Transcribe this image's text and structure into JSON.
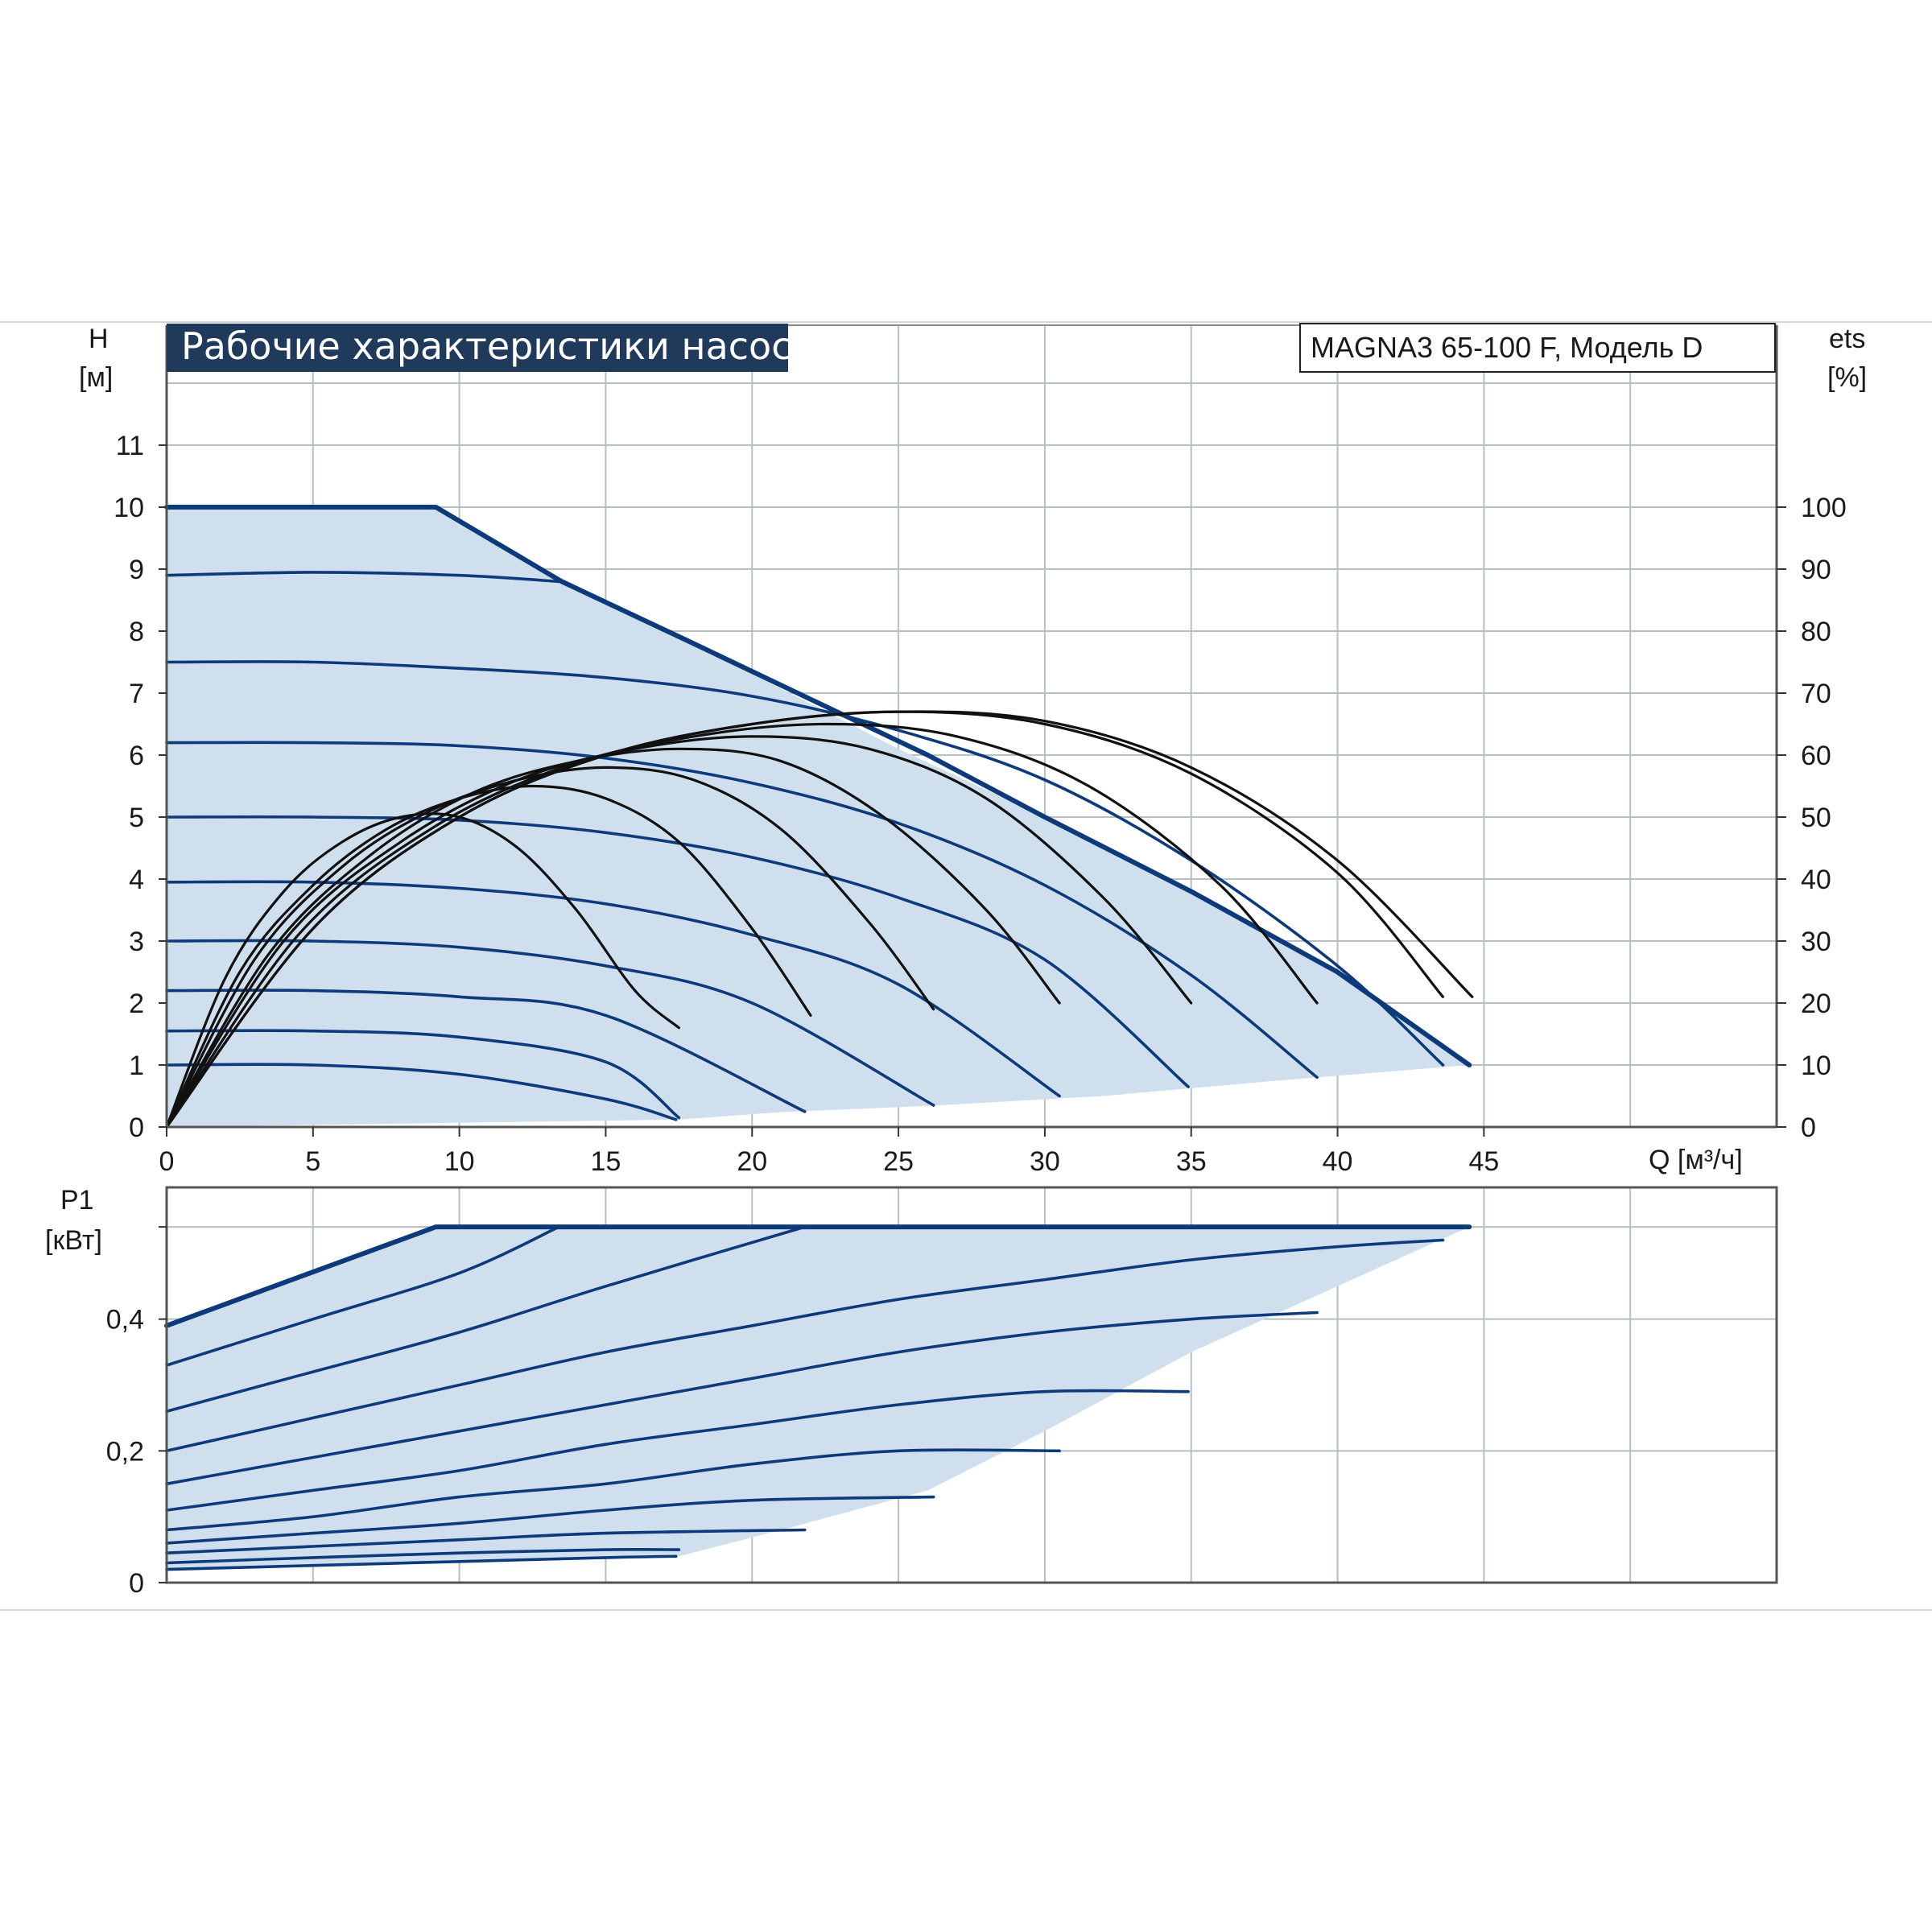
{
  "chart_data": [
    {
      "type": "line",
      "title": "Рабочие характеристики насоса",
      "model": "MAGNA3 65-100 F, Модель D",
      "xlabel": "Q [м³/ч]",
      "ylabel_name": "H",
      "ylabel_unit": "[м]",
      "y2label_name": "ets",
      "y2label_unit": "[%]",
      "xlim": [
        0,
        55
      ],
      "ylim": [
        0,
        12
      ],
      "y2lim": [
        0,
        120
      ],
      "x_ticks": [
        "0",
        "5",
        "10",
        "15",
        "20",
        "25",
        "30",
        "35",
        "40",
        "45"
      ],
      "y_ticks": [
        "0",
        "1",
        "2",
        "3",
        "4",
        "5",
        "6",
        "7",
        "8",
        "9",
        "10",
        "11"
      ],
      "y2_ticks": [
        "0",
        "10",
        "20",
        "30",
        "40",
        "50",
        "60",
        "70",
        "80",
        "90",
        "100"
      ],
      "grid": true,
      "colors": {
        "curve": "#0d3a7a",
        "fill": "#d0dfee",
        "efficiency": "#111111",
        "title_bg": "#1f3a5a"
      },
      "operating_area": [
        [
          0,
          10
        ],
        [
          9.2,
          10
        ],
        [
          13.5,
          8.8
        ],
        [
          18,
          7.8
        ],
        [
          25,
          6.1
        ],
        [
          30,
          5.0
        ],
        [
          35,
          3.8
        ],
        [
          40,
          2.5
        ],
        [
          44.5,
          1.0
        ],
        [
          38,
          0.75
        ],
        [
          32,
          0.5
        ],
        [
          26,
          0.34
        ],
        [
          21,
          0.24
        ],
        [
          17.5,
          0.12
        ],
        [
          0,
          0
        ]
      ],
      "series": [
        {
          "role": "max-curve",
          "x": [
            0,
            9.2,
            13.5,
            18,
            22,
            26,
            30,
            35,
            40,
            44.5
          ],
          "y": [
            10,
            10,
            8.8,
            7.8,
            6.9,
            6.0,
            5.0,
            3.8,
            2.5,
            1.0
          ]
        },
        {
          "role": "speed-curve",
          "x": [
            0,
            5,
            10,
            13.4
          ],
          "y": [
            8.9,
            8.95,
            8.9,
            8.8
          ]
        },
        {
          "role": "speed-curve",
          "x": [
            0,
            5,
            10,
            15,
            20,
            25,
            30,
            35,
            40,
            43.6
          ],
          "y": [
            7.5,
            7.5,
            7.4,
            7.25,
            6.95,
            6.4,
            5.6,
            4.3,
            2.6,
            1.0
          ]
        },
        {
          "role": "speed-curve",
          "x": [
            0,
            5,
            10,
            15,
            20,
            25,
            30,
            35,
            39.3
          ],
          "y": [
            6.2,
            6.2,
            6.15,
            5.95,
            5.55,
            4.9,
            3.9,
            2.45,
            0.8
          ]
        },
        {
          "role": "speed-curve",
          "x": [
            0,
            5,
            10,
            15,
            20,
            25,
            30,
            34.9
          ],
          "y": [
            5.0,
            5.0,
            4.95,
            4.75,
            4.35,
            3.7,
            2.7,
            0.65
          ]
        },
        {
          "role": "speed-curve",
          "x": [
            0,
            5,
            10,
            15,
            20,
            25,
            30.5
          ],
          "y": [
            3.95,
            3.95,
            3.85,
            3.6,
            3.1,
            2.3,
            0.5
          ]
        },
        {
          "role": "speed-curve",
          "x": [
            0,
            5,
            10,
            15,
            20,
            26.2
          ],
          "y": [
            3.0,
            3.0,
            2.9,
            2.6,
            2.0,
            0.35
          ]
        },
        {
          "role": "speed-curve",
          "x": [
            0,
            5,
            10,
            15,
            21.8
          ],
          "y": [
            2.2,
            2.2,
            2.1,
            1.8,
            0.25
          ]
        },
        {
          "role": "speed-curve",
          "x": [
            0,
            5,
            10,
            15,
            17.5
          ],
          "y": [
            1.55,
            1.55,
            1.45,
            1.05,
            0.15
          ]
        },
        {
          "role": "speed-curve",
          "x": [
            0,
            5,
            10,
            15,
            17.4
          ],
          "y": [
            1.0,
            1.0,
            0.85,
            0.45,
            0.12
          ]
        },
        {
          "role": "efficiency",
          "x": [
            0,
            2,
            4,
            6,
            8,
            10,
            12,
            14,
            16,
            17.5
          ],
          "y": [
            0,
            24,
            38,
            46,
            50,
            50,
            45,
            35,
            22,
            16
          ]
        },
        {
          "role": "efficiency",
          "x": [
            0,
            2.5,
            5,
            7.5,
            10,
            12.5,
            15,
            17.5,
            20,
            22
          ],
          "y": [
            0,
            25,
            39,
            48,
            53,
            55,
            53,
            46,
            32,
            18
          ]
        },
        {
          "role": "efficiency",
          "x": [
            0,
            3,
            6,
            9,
            12,
            15,
            18,
            21,
            24,
            26.2
          ],
          "y": [
            0,
            27,
            42,
            51,
            56,
            58,
            56,
            48,
            33,
            19
          ]
        },
        {
          "role": "efficiency",
          "x": [
            0,
            3.5,
            7,
            10.5,
            14,
            17.5,
            21,
            24.5,
            28,
            30.5
          ],
          "y": [
            0,
            28,
            44,
            54,
            59,
            61,
            59,
            50,
            35,
            20
          ]
        },
        {
          "role": "efficiency",
          "x": [
            0,
            4,
            8,
            12,
            16,
            20,
            24,
            28,
            32,
            35
          ],
          "y": [
            0,
            30,
            46,
            56,
            61,
            63,
            61,
            53,
            37,
            20
          ]
        },
        {
          "role": "efficiency",
          "x": [
            0,
            4.5,
            9,
            13.5,
            18,
            22.5,
            27,
            31.5,
            36,
            39.3
          ],
          "y": [
            0,
            31,
            48,
            58,
            63,
            65,
            63,
            55,
            39,
            20
          ]
        },
        {
          "role": "efficiency",
          "x": [
            0,
            5,
            10,
            15,
            20,
            25,
            30,
            35,
            40,
            43.6
          ],
          "y": [
            0,
            32,
            50,
            60,
            65,
            67,
            65,
            57,
            41,
            21
          ]
        },
        {
          "role": "efficiency",
          "x": [
            0,
            5,
            10,
            15,
            20,
            25,
            30,
            35,
            40,
            44.6
          ],
          "y": [
            0,
            32,
            50,
            60,
            65,
            67,
            65.5,
            58,
            43,
            21
          ]
        }
      ]
    },
    {
      "type": "line",
      "xlabel": "",
      "ylabel_name": "P1",
      "ylabel_unit": "[кВт]",
      "xlim": [
        0,
        55
      ],
      "ylim": [
        0,
        0.6
      ],
      "y_ticks": [
        "0",
        "0,2",
        "0,4"
      ],
      "y_tick_values": [
        0,
        0.2,
        0.4
      ],
      "grid": true,
      "operating_area": [
        [
          0,
          0.39
        ],
        [
          9.2,
          0.54
        ],
        [
          44.5,
          0.54
        ],
        [
          43.5,
          0.52
        ],
        [
          40,
          0.45
        ],
        [
          35,
          0.35
        ],
        [
          30,
          0.23
        ],
        [
          26,
          0.14
        ],
        [
          21,
          0.08
        ],
        [
          17.5,
          0.04
        ],
        [
          0,
          0.02
        ]
      ],
      "series": [
        {
          "role": "max-curve",
          "x": [
            0,
            9.2,
            44.5
          ],
          "y": [
            0.39,
            0.54,
            0.54
          ]
        },
        {
          "role": "speed-curve",
          "x": [
            0,
            5,
            10,
            13.4
          ],
          "y": [
            0.33,
            0.4,
            0.47,
            0.54
          ]
        },
        {
          "role": "speed-curve",
          "x": [
            0,
            5,
            10,
            15,
            21.8
          ],
          "y": [
            0.26,
            0.32,
            0.38,
            0.45,
            0.54
          ]
        },
        {
          "role": "speed-curve",
          "x": [
            0,
            5,
            10,
            15,
            20,
            25,
            30,
            35,
            40,
            43.6
          ],
          "y": [
            0.2,
            0.25,
            0.3,
            0.35,
            0.39,
            0.43,
            0.46,
            0.49,
            0.51,
            0.52
          ]
        },
        {
          "role": "speed-curve",
          "x": [
            0,
            5,
            10,
            15,
            20,
            25,
            30,
            35,
            39.3
          ],
          "y": [
            0.15,
            0.19,
            0.23,
            0.27,
            0.31,
            0.35,
            0.38,
            0.4,
            0.41
          ]
        },
        {
          "role": "speed-curve",
          "x": [
            0,
            5,
            10,
            15,
            20,
            25,
            30,
            34.9
          ],
          "y": [
            0.11,
            0.14,
            0.17,
            0.21,
            0.24,
            0.27,
            0.29,
            0.29
          ]
        },
        {
          "role": "speed-curve",
          "x": [
            0,
            5,
            10,
            15,
            20,
            25,
            30.5
          ],
          "y": [
            0.08,
            0.1,
            0.13,
            0.15,
            0.18,
            0.2,
            0.2
          ]
        },
        {
          "role": "speed-curve",
          "x": [
            0,
            5,
            10,
            15,
            20,
            26.2
          ],
          "y": [
            0.06,
            0.075,
            0.09,
            0.11,
            0.125,
            0.13
          ]
        },
        {
          "role": "speed-curve",
          "x": [
            0,
            5,
            10,
            15,
            21.8
          ],
          "y": [
            0.045,
            0.055,
            0.065,
            0.075,
            0.08
          ]
        },
        {
          "role": "speed-curve",
          "x": [
            0,
            5,
            10,
            15,
            17.5
          ],
          "y": [
            0.03,
            0.038,
            0.045,
            0.05,
            0.05
          ]
        },
        {
          "role": "speed-curve",
          "x": [
            0,
            5,
            10,
            15,
            17.4
          ],
          "y": [
            0.02,
            0.026,
            0.032,
            0.038,
            0.04
          ]
        }
      ]
    }
  ]
}
